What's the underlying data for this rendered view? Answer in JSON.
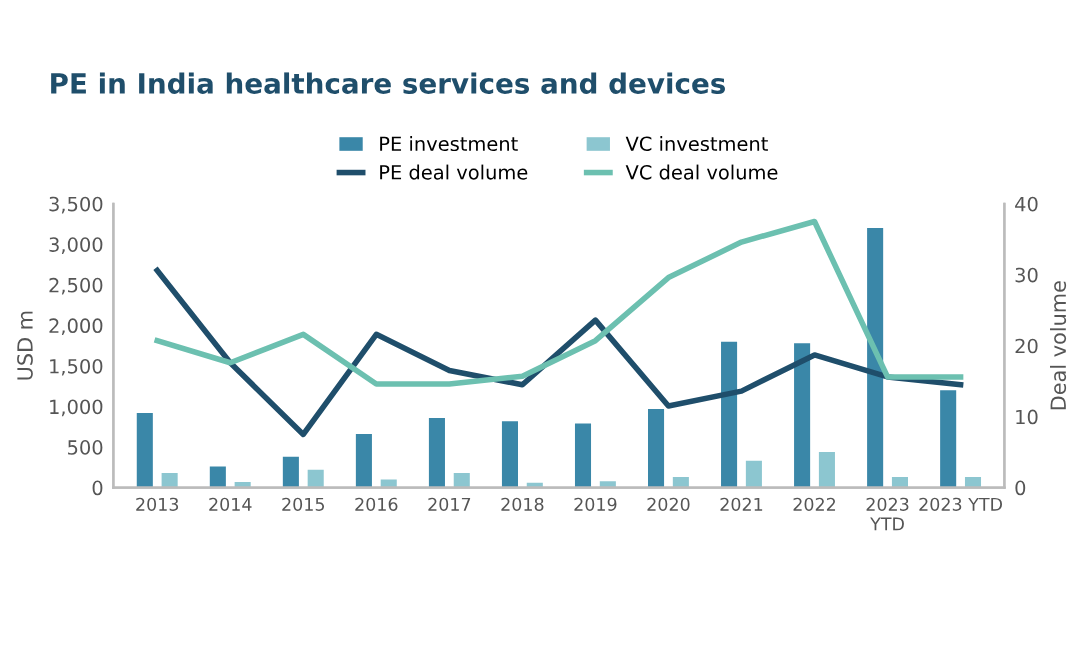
{
  "chart_data": {
    "type": "bar",
    "title": "PE in India healthcare services and devices",
    "ylabel": "USD m",
    "y2label": "Deal volume",
    "categories": [
      "2013",
      "2014",
      "2015",
      "2016",
      "2017",
      "2018",
      "2019",
      "2020",
      "2021",
      "2022",
      "2023\nYTD",
      "2023 YTD"
    ],
    "series": [
      {
        "name": "PE investment",
        "color": "#3a87a8",
        "values": [
          920,
          260,
          380,
          660,
          860,
          820,
          790,
          970,
          1800,
          1780,
          3200,
          1200
        ]
      },
      {
        "name": "VC investment",
        "color": "#8cc6d0",
        "values": [
          180,
          70,
          220,
          100,
          180,
          60,
          80,
          130,
          330,
          440,
          130,
          130
        ]
      },
      {
        "name": "PE deal volume",
        "type": "line",
        "axis": "y2",
        "color": "#1f4e6b",
        "values": [
          30.6,
          17.6,
          7.5,
          21.6,
          16.5,
          14.5,
          23.6,
          11.5,
          13.6,
          18.7,
          15.6,
          14.5
        ]
      },
      {
        "name": "VC deal volume",
        "type": "line",
        "axis": "y2",
        "color": "#6cc0b0",
        "values": [
          20.7,
          17.6,
          21.6,
          14.6,
          14.6,
          15.7,
          20.7,
          29.6,
          34.6,
          37.5,
          15.6,
          15.6
        ]
      }
    ],
    "ylim": [
      0,
      3500
    ],
    "yticks": [
      0,
      {
        "value": 500,
        "label": "500"
      },
      {
        "value": 1000,
        "label": "1,000"
      },
      {
        "value": 1500,
        "label": "1,500"
      },
      {
        "value": 2000,
        "label": "2,000"
      },
      {
        "value": 2500,
        "label": "2,500"
      },
      {
        "value": 3000,
        "label": "3,000"
      },
      {
        "value": 3500,
        "label": "3,500"
      }
    ],
    "y2lim": [
      0,
      40
    ],
    "y2ticks": [
      0,
      10,
      20,
      30,
      40
    ],
    "legend": "top",
    "grid": false,
    "marker": "none",
    "line_style": "solid"
  }
}
